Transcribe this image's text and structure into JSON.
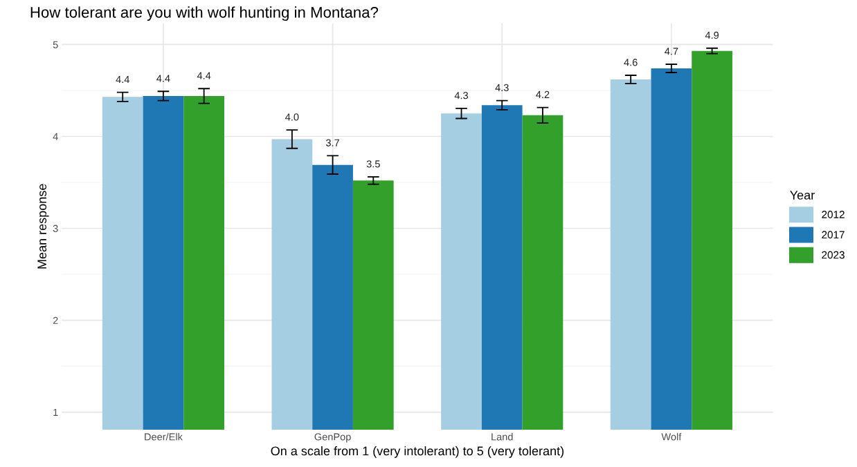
{
  "chart_data": {
    "type": "bar",
    "title": "How tolerant are you with wolf hunting in Montana?",
    "xlabel": "On a scale from 1 (very intolerant) to 5 (very tolerant)",
    "ylabel": "Mean response",
    "legend_title": "Year",
    "categories": [
      "Deer/Elk",
      "GenPop",
      "Land",
      "Wolf"
    ],
    "series": [
      {
        "name": "2012",
        "color": "#a6cee3",
        "values": [
          4.43,
          3.97,
          4.25,
          4.62
        ],
        "errors": [
          0.05,
          0.1,
          0.055,
          0.045
        ],
        "value_labels": [
          "4.4",
          "4.0",
          "4.3",
          "4.6"
        ]
      },
      {
        "name": "2017",
        "color": "#1f78b4",
        "values": [
          4.44,
          3.69,
          4.34,
          4.74
        ],
        "errors": [
          0.05,
          0.1,
          0.05,
          0.045
        ],
        "value_labels": [
          "4.4",
          "3.7",
          "4.3",
          "4.7"
        ]
      },
      {
        "name": "2023",
        "color": "#33a02c",
        "values": [
          4.44,
          3.52,
          4.23,
          4.93
        ],
        "errors": [
          0.08,
          0.04,
          0.085,
          0.03
        ],
        "value_labels": [
          "4.4",
          "3.5",
          "4.2",
          "4.9"
        ]
      }
    ],
    "ylim": [
      0.81,
      5.23
    ],
    "yticks": [
      1,
      {
        "value": 1.5,
        "label": null
      },
      2,
      {
        "value": 2.5,
        "label": null
      },
      3,
      {
        "value": 3.5,
        "label": null
      },
      4,
      {
        "value": 4.5,
        "label": null
      },
      5
    ],
    "grid": true,
    "legend": "right"
  }
}
